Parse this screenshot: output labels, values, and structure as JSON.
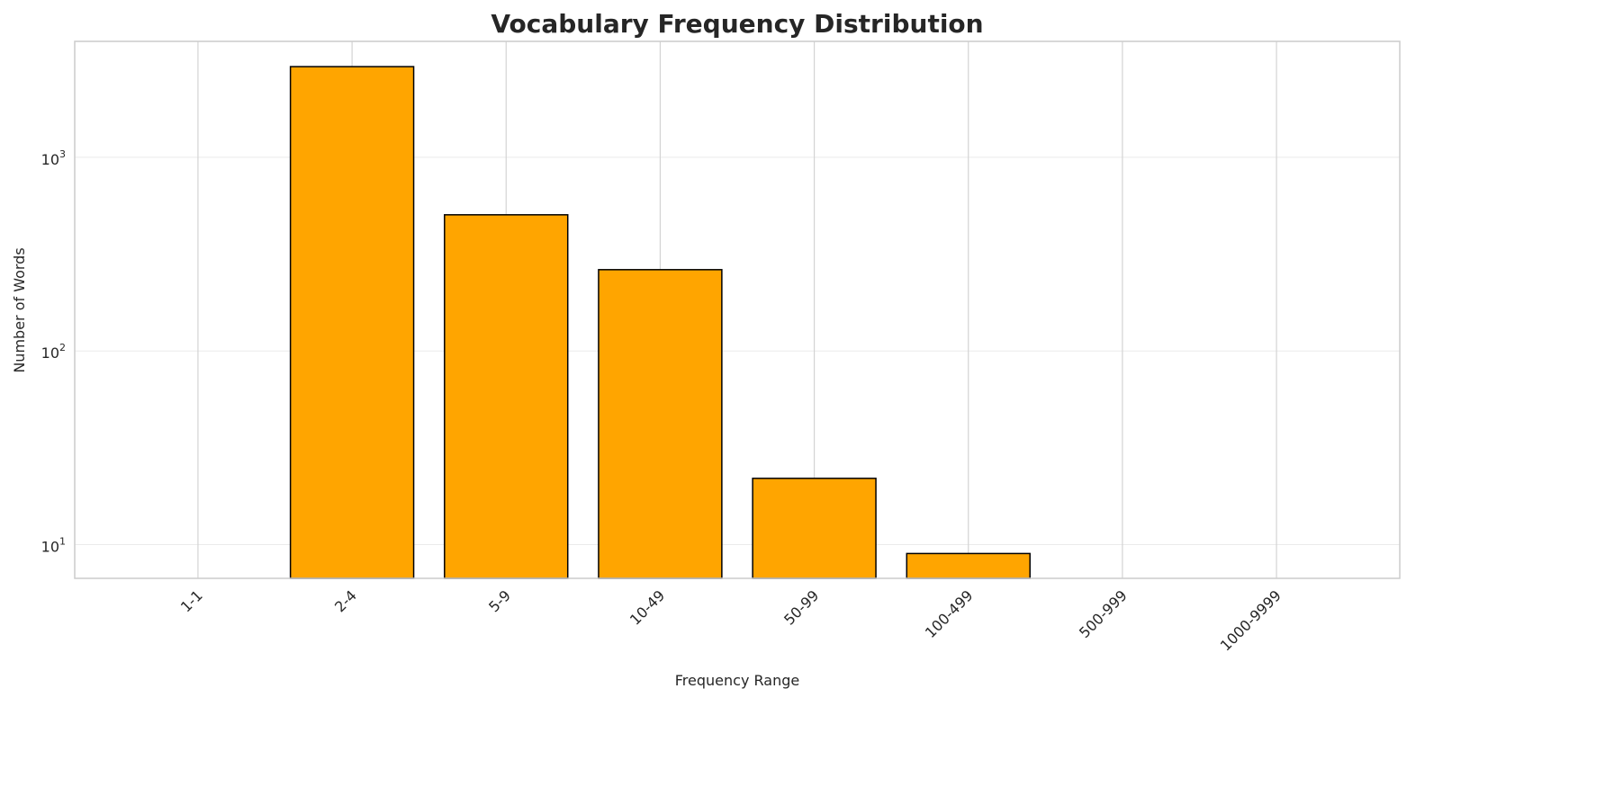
{
  "chart_data": {
    "type": "bar",
    "title": "Vocabulary Frequency Distribution",
    "xlabel": "Frequency Range",
    "ylabel": "Number of Words",
    "yscale": "log",
    "ylim": [
      6.7,
      3970
    ],
    "categories": [
      "1-1",
      "2-4",
      "5-9",
      "10-49",
      "50-99",
      "100-499",
      "500-999",
      "1000-9999"
    ],
    "values": [
      0,
      2940,
      505,
      263,
      22,
      9,
      0,
      0
    ],
    "yticks": [
      {
        "value": 10,
        "base": "10",
        "exp": "1"
      },
      {
        "value": 100,
        "base": "10",
        "exp": "2"
      },
      {
        "value": 1000,
        "base": "10",
        "exp": "3"
      }
    ],
    "grid": true,
    "colors": {
      "bar": "#FFA500",
      "edge": "#000000",
      "grid": "#ebebeb",
      "vgrid": "#d3d3d3",
      "spine": "#cccccc"
    }
  }
}
